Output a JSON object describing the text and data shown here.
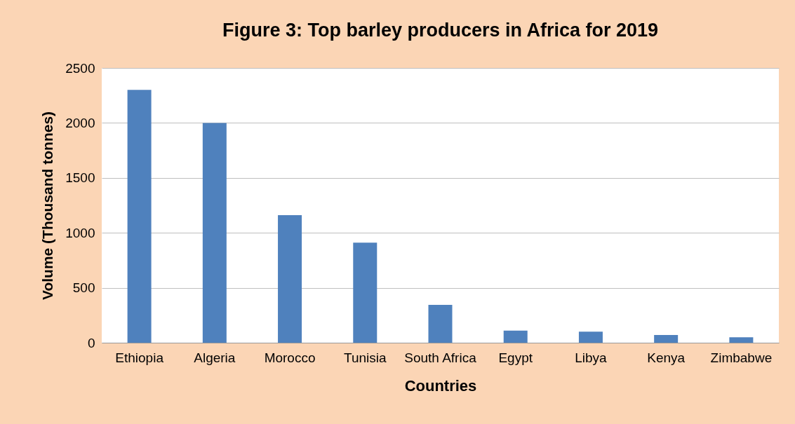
{
  "chart_data": {
    "type": "bar",
    "title": "Figure 3: Top barley producers in Africa for 2019",
    "xlabel": "Countries",
    "ylabel": "Volume (Thousand tonnes)",
    "categories": [
      "Ethiopia",
      "Algeria",
      "Morocco",
      "Tunisia",
      "South Africa",
      "Egypt",
      "Libya",
      "Kenya",
      "Zimbabwe"
    ],
    "values": [
      2300,
      2000,
      1160,
      910,
      345,
      110,
      100,
      70,
      50
    ],
    "color": "#4f81bd",
    "ylim": [
      0,
      2500
    ],
    "yticks": [
      0,
      500,
      1000,
      1500,
      2000,
      2500
    ],
    "grid": "y"
  }
}
